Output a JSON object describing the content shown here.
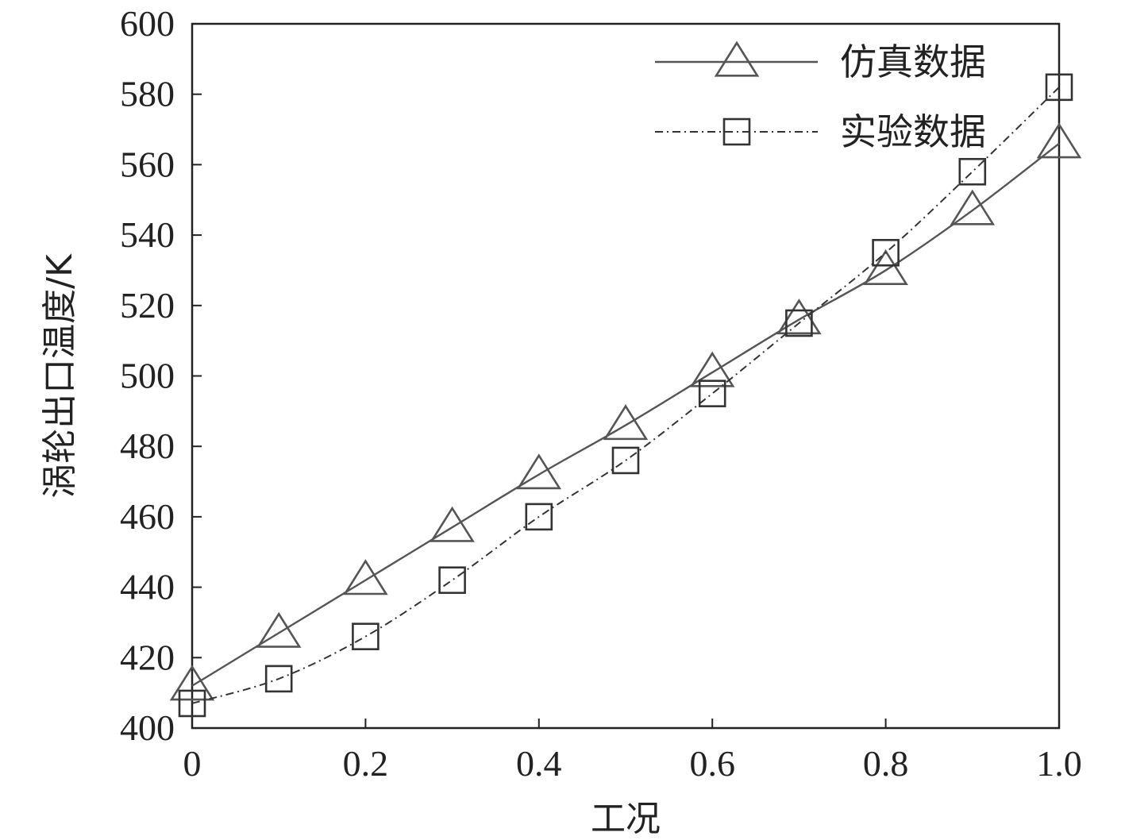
{
  "chart_data": {
    "type": "line",
    "xlabel": "工况",
    "ylabel": "涡轮出口温度/K",
    "xlim": [
      0,
      1.0
    ],
    "ylim": [
      400,
      600
    ],
    "xticks": [
      0,
      0.2,
      0.4,
      0.6,
      0.8,
      1.0
    ],
    "xtick_labels": [
      "0",
      "0.2",
      "0.4",
      "0.6",
      "0.8",
      "1.0"
    ],
    "yticks": [
      400,
      420,
      440,
      460,
      480,
      500,
      520,
      540,
      560,
      580,
      600
    ],
    "ytick_labels": [
      "400",
      "420",
      "440",
      "460",
      "480",
      "500",
      "520",
      "540",
      "560",
      "580",
      "600"
    ],
    "grid": false,
    "legend_position": "top-right",
    "series": [
      {
        "name": "仿真数据",
        "marker": "triangle",
        "line_style": "solid",
        "color": "#555555",
        "x": [
          0,
          0.1,
          0.2,
          0.3,
          0.4,
          0.5,
          0.6,
          0.7,
          0.8,
          0.9,
          1.0
        ],
        "y": [
          412,
          427,
          442,
          457,
          472,
          486,
          501,
          516,
          530,
          547,
          566
        ]
      },
      {
        "name": "实验数据",
        "marker": "square",
        "line_style": "dashdot",
        "color": "#333333",
        "x": [
          0,
          0.1,
          0.2,
          0.3,
          0.4,
          0.5,
          0.6,
          0.7,
          0.8,
          0.9,
          1.0
        ],
        "y": [
          407,
          414,
          426,
          442,
          460,
          476,
          495,
          515,
          535,
          558,
          582
        ]
      }
    ]
  }
}
